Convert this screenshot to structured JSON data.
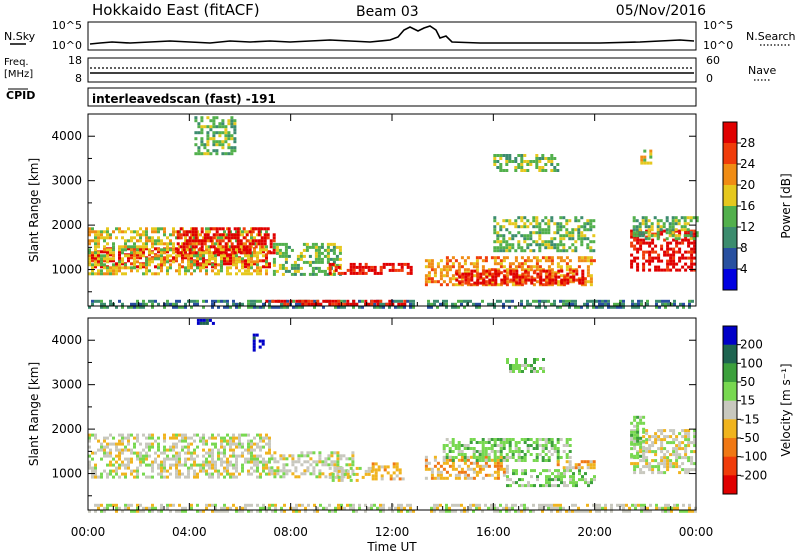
{
  "header": {
    "station": "Hokkaido East (fitACF)",
    "beam": "Beam 03",
    "date": "05/Nov/2016"
  },
  "noise_panel": {
    "left_label": "N.Sky",
    "right_label": "N.Search",
    "left_ticks": [
      "10^5",
      "10^0"
    ],
    "right_ticks": [
      "10^5",
      "10^0"
    ]
  },
  "freq_panel": {
    "left_label_1": "Freq.",
    "left_label_2": "[MHz]",
    "right_label": "Nave",
    "left_ticks": [
      "18",
      "8"
    ],
    "right_ticks": [
      "60",
      "0"
    ]
  },
  "cpid": {
    "label": "CPID",
    "text": "interleavedscan (fast) -191"
  },
  "chart_data": [
    {
      "type": "heatmap",
      "panel": "power",
      "ylabel": "Slant Range [km]",
      "y_ticks": [
        "1000",
        "2000",
        "3000",
        "4000"
      ],
      "ylim": [
        180,
        4500
      ],
      "xlim": [
        0,
        24
      ],
      "colorbar_label": "Power [dB]",
      "colorbar_ticks": [
        "4",
        "8",
        "12",
        "16",
        "20",
        "24",
        "28"
      ],
      "colors": [
        "#0000e0",
        "#2850a0",
        "#3c8c6e",
        "#52b04c",
        "#e6c81e",
        "#f08c14",
        "#f03c0a",
        "#e00000"
      ],
      "bands": [
        {
          "t0": 0.0,
          "t1": 7.2,
          "r0": 1050,
          "r1": 1500,
          "level": 7
        },
        {
          "t0": 0.0,
          "t1": 7.0,
          "r0": 900,
          "r1": 1950,
          "level": 4
        },
        {
          "t0": 3.5,
          "t1": 7.3,
          "r0": 1400,
          "r1": 1950,
          "level": 7
        },
        {
          "t0": 7.3,
          "t1": 10.0,
          "r0": 900,
          "r1": 1600,
          "level": 3
        },
        {
          "t0": 9.5,
          "t1": 12.8,
          "r0": 900,
          "r1": 1150,
          "level": 7
        },
        {
          "t0": 13.3,
          "t1": 20.0,
          "r0": 650,
          "r1": 1300,
          "level": 5
        },
        {
          "t0": 14.5,
          "t1": 19.5,
          "r0": 700,
          "r1": 1000,
          "level": 7
        },
        {
          "t0": 16.0,
          "t1": 20.0,
          "r0": 1400,
          "r1": 2200,
          "level": 3
        },
        {
          "t0": 21.4,
          "t1": 24.0,
          "r0": 1000,
          "r1": 1900,
          "level": 7
        },
        {
          "t0": 21.5,
          "t1": 24.0,
          "r0": 1700,
          "r1": 2200,
          "level": 3
        },
        {
          "t0": 0.0,
          "t1": 24.0,
          "r0": 180,
          "r1": 320,
          "level": 2
        },
        {
          "t0": 7.0,
          "t1": 12.5,
          "r0": 200,
          "r1": 320,
          "level": 7
        },
        {
          "t0": 4.2,
          "t1": 5.8,
          "r0": 3600,
          "r1": 4450,
          "level": 3
        },
        {
          "t0": 16.0,
          "t1": 18.5,
          "r0": 3200,
          "r1": 3600,
          "level": 3
        },
        {
          "t0": 21.8,
          "t1": 22.2,
          "r0": 3400,
          "r1": 3700,
          "level": 4
        }
      ]
    },
    {
      "type": "heatmap",
      "panel": "velocity",
      "ylabel": "Slant Range [km]",
      "y_ticks": [
        "1000",
        "2000",
        "3000",
        "4000"
      ],
      "ylim": [
        180,
        4500
      ],
      "xlim": [
        0,
        24
      ],
      "colorbar_label": "Velocity [m s⁻¹]",
      "colorbar_ticks": [
        "200",
        "100",
        "50",
        "15",
        "-15",
        "-50",
        "-100",
        "-200"
      ],
      "colors": [
        "#0000c8",
        "#1e6450",
        "#3ca03c",
        "#78d850",
        "#c8c8be",
        "#f0b41e",
        "#f07814",
        "#f03c0a",
        "#e00000"
      ],
      "bands": [
        {
          "t0": 0.0,
          "t1": 7.2,
          "r0": 900,
          "r1": 1900,
          "level": 4
        },
        {
          "t0": 7.2,
          "t1": 10.5,
          "r0": 900,
          "r1": 1500,
          "level": 4
        },
        {
          "t0": 9.5,
          "t1": 11.2,
          "r0": 850,
          "r1": 1150,
          "level": 4
        },
        {
          "t0": 11.2,
          "t1": 12.5,
          "r0": 850,
          "r1": 1250,
          "level": 5
        },
        {
          "t0": 13.3,
          "t1": 16.5,
          "r0": 900,
          "r1": 1400,
          "level": 5
        },
        {
          "t0": 14.0,
          "t1": 19.0,
          "r0": 1300,
          "r1": 1800,
          "level": 3
        },
        {
          "t0": 16.5,
          "t1": 20.0,
          "r0": 700,
          "r1": 1100,
          "level": 3
        },
        {
          "t0": 18.5,
          "t1": 20.0,
          "r0": 1100,
          "r1": 1300,
          "level": 5
        },
        {
          "t0": 21.4,
          "t1": 24.0,
          "r0": 1000,
          "r1": 2000,
          "level": 4
        },
        {
          "t0": 21.4,
          "t1": 21.9,
          "r0": 1400,
          "r1": 2300,
          "level": 3
        },
        {
          "t0": 0.0,
          "t1": 24.0,
          "r0": 180,
          "r1": 320,
          "level": 4
        },
        {
          "t0": 4.3,
          "t1": 4.9,
          "r0": 4380,
          "r1": 4480,
          "level": 0
        },
        {
          "t0": 6.5,
          "t1": 6.9,
          "r0": 3800,
          "r1": 4150,
          "level": 0
        },
        {
          "t0": 16.5,
          "t1": 18.0,
          "r0": 3300,
          "r1": 3600,
          "level": 3
        }
      ]
    }
  ],
  "x_axis": {
    "label": "Time UT",
    "ticks": [
      "00:00",
      "04:00",
      "08:00",
      "12:00",
      "16:00",
      "20:00",
      "00:00"
    ],
    "tick_hours": [
      0,
      4,
      8,
      12,
      16,
      20,
      24
    ]
  }
}
